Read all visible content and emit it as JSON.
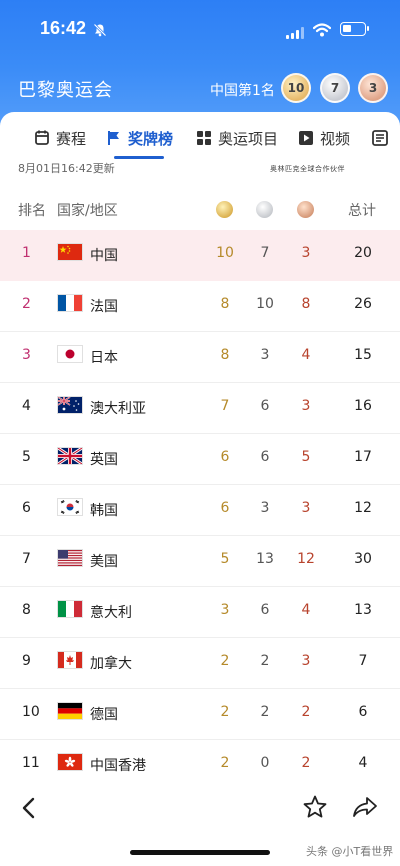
{
  "status": {
    "time": "16:42"
  },
  "header": {
    "title": "巴黎奥运会",
    "rank_text": "中国第1名",
    "medals": {
      "gold": "10",
      "silver": "7",
      "bronze": "3"
    }
  },
  "tabs": [
    {
      "label": "赛程",
      "icon": "trophy-icon"
    },
    {
      "label": "奖牌榜",
      "icon": "flag-icon"
    },
    {
      "label": "奥运项目",
      "icon": "grid-icon"
    },
    {
      "label": "视频",
      "icon": "play-icon"
    }
  ],
  "active_tab": "奖牌榜",
  "updated": "8月01日16:42更新",
  "sponsor": "奥林匹克全球合作伙伴",
  "columns": {
    "rank": "排名",
    "country": "国家/地区",
    "total": "总计"
  },
  "rows": [
    {
      "rank": "1",
      "name": "中国",
      "flag": "china-flag",
      "gold": "10",
      "silver": "7",
      "bronze": "3",
      "total": "20"
    },
    {
      "rank": "2",
      "name": "法国",
      "flag": "france-flag",
      "gold": "8",
      "silver": "10",
      "bronze": "8",
      "total": "26"
    },
    {
      "rank": "3",
      "name": "日本",
      "flag": "japan-flag",
      "gold": "8",
      "silver": "3",
      "bronze": "4",
      "total": "15"
    },
    {
      "rank": "4",
      "name": "澳大利亚",
      "flag": "australia-flag",
      "gold": "7",
      "silver": "6",
      "bronze": "3",
      "total": "16"
    },
    {
      "rank": "5",
      "name": "英国",
      "flag": "uk-flag",
      "gold": "6",
      "silver": "6",
      "bronze": "5",
      "total": "17"
    },
    {
      "rank": "6",
      "name": "韩国",
      "flag": "korea-flag",
      "gold": "6",
      "silver": "3",
      "bronze": "3",
      "total": "12"
    },
    {
      "rank": "7",
      "name": "美国",
      "flag": "usa-flag",
      "gold": "5",
      "silver": "13",
      "bronze": "12",
      "total": "30"
    },
    {
      "rank": "8",
      "name": "意大利",
      "flag": "italy-flag",
      "gold": "3",
      "silver": "6",
      "bronze": "4",
      "total": "13"
    },
    {
      "rank": "9",
      "name": "加拿大",
      "flag": "canada-flag",
      "gold": "2",
      "silver": "2",
      "bronze": "3",
      "total": "7"
    },
    {
      "rank": "10",
      "name": "德国",
      "flag": "germany-flag",
      "gold": "2",
      "silver": "2",
      "bronze": "2",
      "total": "6"
    },
    {
      "rank": "11",
      "name": "中国香港",
      "flag": "hong-kong-flag",
      "gold": "2",
      "silver": "0",
      "bronze": "2",
      "total": "4"
    }
  ],
  "bottom": {
    "back_icon": "chevron-left-icon",
    "star_icon": "star-icon",
    "share_icon": "share-icon"
  },
  "watermark": "头条 @小T看世界",
  "colors": {
    "header_blue": "#2d7ff5",
    "active_tab": "#1f5fcf",
    "top_rank": "#c03070",
    "gold_text": "#b58a2a",
    "bronze_text": "#b8432d",
    "highlight_row": "#fcecee"
  }
}
